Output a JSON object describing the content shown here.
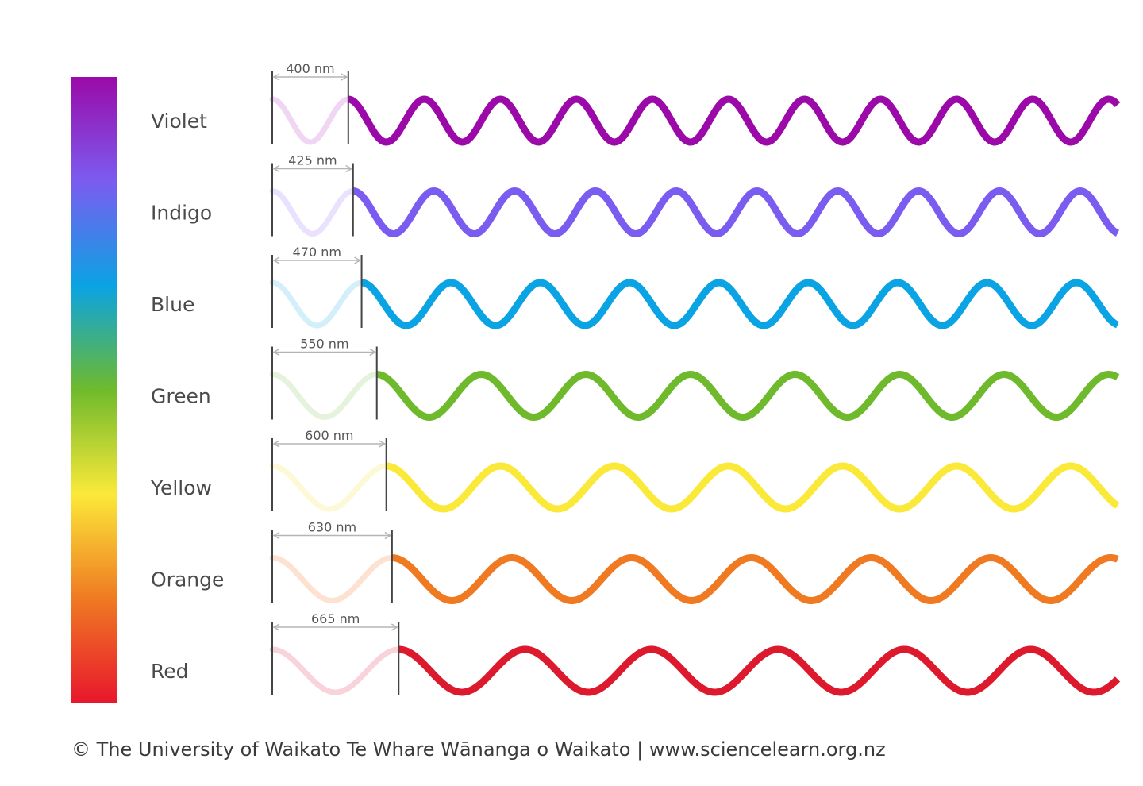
{
  "bands": [
    {
      "name": "Violet",
      "wavelength_nm": 400,
      "wavelength_label": "400 nm",
      "color": "#9b0aa8",
      "pale": "#f0d6f3"
    },
    {
      "name": "Indigo",
      "wavelength_nm": 425,
      "wavelength_label": "425 nm",
      "color": "#7b5cf0",
      "pale": "#e9e1fd"
    },
    {
      "name": "Blue",
      "wavelength_nm": 470,
      "wavelength_label": "470 nm",
      "color": "#0aa3e3",
      "pale": "#d3eff9"
    },
    {
      "name": "Green",
      "wavelength_nm": 550,
      "wavelength_label": "550 nm",
      "color": "#6fba2c",
      "pale": "#e6f3dc"
    },
    {
      "name": "Yellow",
      "wavelength_nm": 600,
      "wavelength_label": "600 nm",
      "color": "#fbe93a",
      "pale": "#fdf8d6"
    },
    {
      "name": "Orange",
      "wavelength_nm": 630,
      "wavelength_label": "630 nm",
      "color": "#ef7a22",
      "pale": "#fde2d2"
    },
    {
      "name": "Red",
      "wavelength_nm": 665,
      "wavelength_label": "665 nm",
      "color": "#dd1a2d",
      "pale": "#f8d3da"
    }
  ],
  "spectrum_gradient": [
    "#9b0aa8",
    "#7b5cf0",
    "#0aa3e3",
    "#6fba2c",
    "#fbe93a",
    "#ef7a22",
    "#e8172d"
  ],
  "credit": "© The University of Waikato Te Whare Wānanga o Waikato | www.sciencelearn.org.nz"
}
